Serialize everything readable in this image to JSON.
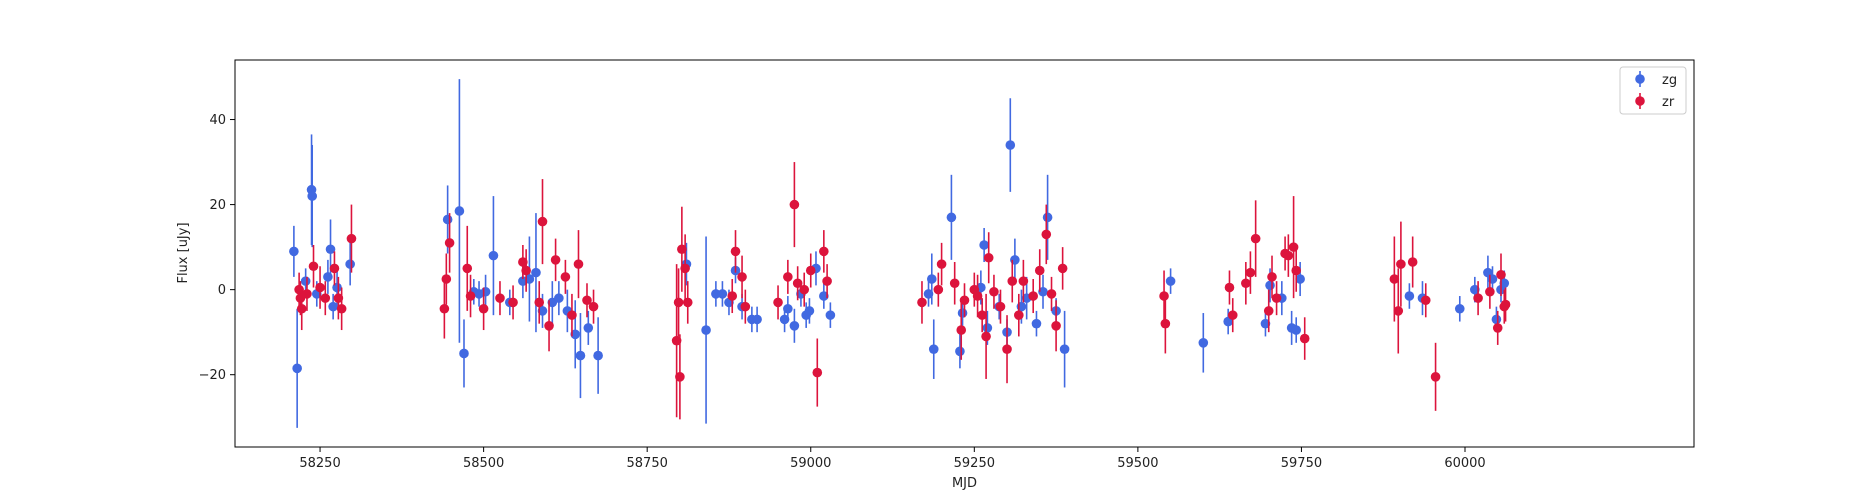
{
  "chart_data": {
    "type": "scatter",
    "xlabel": "MJD",
    "ylabel": "Flux [uJy]",
    "xlim": [
      58120,
      60350
    ],
    "ylim": [
      -37,
      54
    ],
    "xticks": [
      58250,
      58500,
      58750,
      59000,
      59250,
      59500,
      59750,
      60000
    ],
    "yticks": [
      -20,
      0,
      20,
      40
    ],
    "grid": false,
    "legend": "top-right",
    "series": [
      {
        "name": "zg",
        "color": "#4169e1",
        "points": [
          [
            58210,
            9,
            6
          ],
          [
            58215,
            -18.5,
            14
          ],
          [
            58228,
            2,
            3
          ],
          [
            58237,
            23.5,
            13
          ],
          [
            58238,
            22,
            12
          ],
          [
            58245,
            -1,
            3
          ],
          [
            58262,
            3,
            4
          ],
          [
            58266,
            9.5,
            7
          ],
          [
            58270,
            -4,
            3
          ],
          [
            58276,
            0.5,
            4
          ],
          [
            58296,
            6,
            5
          ],
          [
            58445,
            16.5,
            8
          ],
          [
            58463,
            18.5,
            31
          ],
          [
            58470,
            -15,
            8
          ],
          [
            58485,
            -0.5,
            3
          ],
          [
            58493,
            -1,
            3
          ],
          [
            58503,
            -0.5,
            4
          ],
          [
            58515,
            8,
            14
          ],
          [
            58540,
            -3,
            3
          ],
          [
            58560,
            2,
            4
          ],
          [
            58570,
            2.5,
            10
          ],
          [
            58580,
            4,
            14
          ],
          [
            58590,
            -5,
            4
          ],
          [
            58605,
            -3,
            5
          ],
          [
            58615,
            -2,
            4
          ],
          [
            58628,
            -5,
            5
          ],
          [
            58640,
            -10.5,
            8
          ],
          [
            58648,
            -15.5,
            10
          ],
          [
            58660,
            -9,
            4
          ],
          [
            58675,
            -15.5,
            9
          ],
          [
            58810,
            6,
            5
          ],
          [
            58840,
            -9.5,
            22
          ],
          [
            58855,
            -1,
            3
          ],
          [
            58865,
            -1,
            3
          ],
          [
            58875,
            -3,
            3
          ],
          [
            58885,
            4.5,
            3
          ],
          [
            58895,
            -4,
            3
          ],
          [
            58910,
            -7,
            3
          ],
          [
            58918,
            -7,
            3
          ],
          [
            58960,
            -7,
            3
          ],
          [
            58965,
            -4.5,
            3
          ],
          [
            58975,
            -8.5,
            4
          ],
          [
            58985,
            -1,
            3
          ],
          [
            58993,
            -6,
            3
          ],
          [
            58998,
            -5,
            3
          ],
          [
            59008,
            5,
            4
          ],
          [
            59020,
            -1.5,
            3
          ],
          [
            59030,
            -6,
            3
          ],
          [
            59180,
            -1,
            3
          ],
          [
            59185,
            2.5,
            6
          ],
          [
            59188,
            -14,
            7
          ],
          [
            59215,
            17,
            10
          ],
          [
            59228,
            -14.5,
            4
          ],
          [
            59232,
            -5.5,
            3
          ],
          [
            59260,
            0.5,
            4
          ],
          [
            59265,
            10.5,
            4
          ],
          [
            59270,
            -9,
            4
          ],
          [
            59288,
            -4,
            3
          ],
          [
            59300,
            -10,
            3
          ],
          [
            59305,
            34,
            11
          ],
          [
            59312,
            7,
            5
          ],
          [
            59322,
            -4,
            4
          ],
          [
            59330,
            -2,
            5
          ],
          [
            59345,
            -8,
            3
          ],
          [
            59355,
            -0.5,
            4
          ],
          [
            59362,
            17,
            10
          ],
          [
            59375,
            -5,
            3
          ],
          [
            59388,
            -14,
            9
          ],
          [
            59550,
            2,
            3
          ],
          [
            59600,
            -12.5,
            7
          ],
          [
            59638,
            -7.5,
            3
          ],
          [
            59695,
            -8,
            3
          ],
          [
            59702,
            1,
            4
          ],
          [
            59720,
            -2,
            4
          ],
          [
            59735,
            -9,
            4
          ],
          [
            59742,
            -9.5,
            3
          ],
          [
            59748,
            2.5,
            4
          ],
          [
            59915,
            -1.5,
            3
          ],
          [
            59935,
            -2,
            4
          ],
          [
            59992,
            -4.5,
            3
          ],
          [
            60015,
            0,
            3
          ],
          [
            60035,
            4,
            4
          ],
          [
            60042,
            2.5,
            3
          ],
          [
            60048,
            -7,
            3
          ],
          [
            60055,
            0,
            3
          ],
          [
            60060,
            1.5,
            3
          ]
        ]
      },
      {
        "name": "zr",
        "color": "#dc143c",
        "points": [
          [
            58218,
            0,
            4
          ],
          [
            58220,
            -2,
            4
          ],
          [
            58222,
            -4.5,
            5
          ],
          [
            58230,
            -1,
            4
          ],
          [
            58240,
            5.5,
            5
          ],
          [
            58250,
            0.5,
            5
          ],
          [
            58258,
            -2,
            4
          ],
          [
            58272,
            5,
            4
          ],
          [
            58278,
            -2,
            5
          ],
          [
            58283,
            -4.5,
            5
          ],
          [
            58298,
            12,
            8
          ],
          [
            58440,
            -4.5,
            7
          ],
          [
            58443,
            2.5,
            6
          ],
          [
            58448,
            11,
            7
          ],
          [
            58475,
            5,
            10
          ],
          [
            58480,
            -1.5,
            5
          ],
          [
            58500,
            -4.5,
            5
          ],
          [
            58525,
            -2,
            4
          ],
          [
            58545,
            -3,
            4
          ],
          [
            58560,
            6.5,
            4
          ],
          [
            58565,
            4.5,
            5
          ],
          [
            58585,
            -3,
            5
          ],
          [
            58590,
            16,
            10
          ],
          [
            58600,
            -8.5,
            6
          ],
          [
            58610,
            7,
            5
          ],
          [
            58625,
            3,
            4
          ],
          [
            58635,
            -6,
            5
          ],
          [
            58645,
            6,
            8
          ],
          [
            58658,
            -2.5,
            4
          ],
          [
            58668,
            -4,
            4
          ],
          [
            58795,
            -12,
            18
          ],
          [
            58798,
            -3,
            8
          ],
          [
            58800,
            -20.5,
            10
          ],
          [
            58803,
            9.5,
            10
          ],
          [
            58808,
            5,
            8
          ],
          [
            58812,
            -3,
            5
          ],
          [
            58885,
            9,
            5
          ],
          [
            58880,
            -1.5,
            4
          ],
          [
            58895,
            3,
            5
          ],
          [
            58900,
            -4,
            4
          ],
          [
            58950,
            -3,
            4
          ],
          [
            58965,
            3,
            4
          ],
          [
            58975,
            20,
            10
          ],
          [
            58980,
            1.5,
            4
          ],
          [
            58990,
            0,
            4
          ],
          [
            59000,
            4.5,
            4
          ],
          [
            59010,
            -19.5,
            8
          ],
          [
            59020,
            9,
            5
          ],
          [
            59025,
            2,
            4
          ],
          [
            59170,
            -3,
            5
          ],
          [
            59195,
            0,
            4
          ],
          [
            59200,
            6,
            5
          ],
          [
            59220,
            1.5,
            5
          ],
          [
            59230,
            -9.5,
            7
          ],
          [
            59235,
            -2.5,
            4
          ],
          [
            59250,
            0,
            4
          ],
          [
            59255,
            -1.5,
            5
          ],
          [
            59262,
            -6,
            4
          ],
          [
            59268,
            -11,
            10
          ],
          [
            59272,
            7.5,
            6
          ],
          [
            59280,
            -0.5,
            4
          ],
          [
            59290,
            -4,
            4
          ],
          [
            59300,
            -14,
            8
          ],
          [
            59308,
            2,
            5
          ],
          [
            59318,
            -6,
            5
          ],
          [
            59325,
            2,
            5
          ],
          [
            59340,
            -1.5,
            4
          ],
          [
            59350,
            4.5,
            5
          ],
          [
            59360,
            13,
            7
          ],
          [
            59368,
            -1,
            4
          ],
          [
            59375,
            -8.5,
            6
          ],
          [
            59385,
            5,
            5
          ],
          [
            59540,
            -1.5,
            6
          ],
          [
            59542,
            -8,
            7
          ],
          [
            59640,
            0.5,
            4
          ],
          [
            59645,
            -6,
            4
          ],
          [
            59665,
            1.5,
            5
          ],
          [
            59672,
            4,
            5
          ],
          [
            59680,
            12,
            9
          ],
          [
            59700,
            -5,
            5
          ],
          [
            59705,
            3,
            5
          ],
          [
            59712,
            -2,
            4
          ],
          [
            59725,
            8.5,
            4
          ],
          [
            59730,
            8,
            5
          ],
          [
            59738,
            10,
            12
          ],
          [
            59742,
            4.5,
            5
          ],
          [
            59755,
            -11.5,
            5
          ],
          [
            59892,
            2.5,
            10
          ],
          [
            59898,
            -5,
            10
          ],
          [
            59902,
            6,
            10
          ],
          [
            59920,
            6.5,
            6
          ],
          [
            59940,
            -2.5,
            4
          ],
          [
            59955,
            -20.5,
            8
          ],
          [
            60020,
            -2,
            4
          ],
          [
            60038,
            -0.5,
            4
          ],
          [
            60050,
            -9,
            4
          ],
          [
            60055,
            3.5,
            5
          ],
          [
            60060,
            -4,
            4
          ],
          [
            60062,
            -3.5,
            4
          ]
        ]
      }
    ]
  }
}
